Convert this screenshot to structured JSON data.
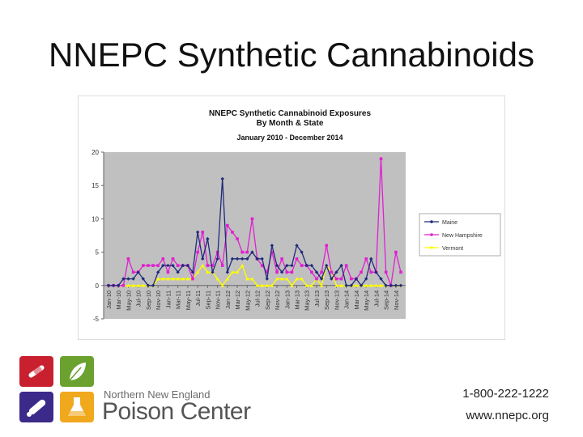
{
  "slide": {
    "title": "NNEPC Synthetic Cannabinoids",
    "phone": "1-800-222-1222",
    "website": "www.nnepc.org",
    "logo": {
      "line1": "Northern New England",
      "line2": "Poison Center",
      "icons": [
        "syringe-icon",
        "leaf-icon",
        "pill-icon",
        "flask-icon"
      ],
      "tile_colors": [
        "#c8202f",
        "#6aa12f",
        "#3b2a8a",
        "#f0a81c"
      ]
    }
  },
  "chart_data": {
    "type": "line",
    "title": "NNEPC Synthetic Cannabinoid Exposures",
    "subtitle": "By Month & State",
    "date_range": "January 2010 - December 2014",
    "ylim": [
      -5,
      20
    ],
    "yticks": [
      -5,
      0,
      5,
      10,
      15,
      20
    ],
    "grid": false,
    "legend_position": "right",
    "plot_background": "#c0c0c0",
    "x": [
      "Jan-10",
      "Feb-10",
      "Mar-10",
      "Apr-10",
      "May-10",
      "Jun-10",
      "Jul-10",
      "Aug-10",
      "Sep-10",
      "Oct-10",
      "Nov-10",
      "Dec-10",
      "Jan-11",
      "Feb-11",
      "Mar-11",
      "Apr-11",
      "May-11",
      "Jun-11",
      "Jul-11",
      "Aug-11",
      "Sep-11",
      "Oct-11",
      "Nov-11",
      "Dec-11",
      "Jan-12",
      "Feb-12",
      "Mar-12",
      "Apr-12",
      "May-12",
      "Jun-12",
      "Jul-12",
      "Aug-12",
      "Sep-12",
      "Oct-12",
      "Nov-12",
      "Dec-12",
      "Jan-13",
      "Feb-13",
      "Mar-13",
      "Apr-13",
      "May-13",
      "Jun-13",
      "Jul-13",
      "Aug-13",
      "Sep-13",
      "Oct-13",
      "Nov-13",
      "Dec-13",
      "Jan-14",
      "Feb-14",
      "Mar-14",
      "Apr-14",
      "May-14",
      "Jun-14",
      "Jul-14",
      "Aug-14",
      "Sep-14",
      "Oct-14",
      "Nov-14",
      "Dec-14"
    ],
    "xtick_labels": [
      "Jan-10",
      "Mar-10",
      "May-10",
      "Jul-10",
      "Sep-10",
      "Nov-10",
      "Jan-11",
      "Mar-11",
      "May-11",
      "Jul-11",
      "Sep-11",
      "Nov-11",
      "Jan-12",
      "Mar-12",
      "May-12",
      "Jul-12",
      "Sep-12",
      "Nov-12",
      "Jan-13",
      "Mar-13",
      "May-13",
      "Jul-13",
      "Sep-13",
      "Nov-13",
      "Jan-14",
      "Mar-14",
      "May-14",
      "Jul-14",
      "Sep-14",
      "Nov-14"
    ],
    "series": [
      {
        "name": "Maine",
        "color": "#1f2a7a",
        "marker": "diamond",
        "values": [
          0,
          0,
          0,
          1,
          1,
          1,
          2,
          1,
          0,
          0,
          2,
          3,
          3,
          3,
          2,
          3,
          3,
          2,
          8,
          4,
          7,
          2,
          4,
          16,
          2,
          4,
          4,
          4,
          4,
          5,
          4,
          4,
          1,
          6,
          3,
          2,
          3,
          3,
          6,
          5,
          3,
          3,
          2,
          1,
          3,
          1,
          2,
          3,
          0,
          0,
          1,
          0,
          1,
          4,
          2,
          1,
          0,
          0,
          0,
          0
        ]
      },
      {
        "name": "New Hampshire",
        "color": "#e020d0",
        "marker": "square",
        "values": [
          0,
          0,
          0,
          0,
          4,
          2,
          2,
          3,
          3,
          3,
          3,
          4,
          2,
          4,
          3,
          3,
          3,
          1,
          5,
          8,
          3,
          3,
          5,
          3,
          9,
          8,
          7,
          5,
          5,
          10,
          4,
          3,
          2,
          5,
          2,
          4,
          2,
          2,
          4,
          3,
          3,
          2,
          1,
          2,
          6,
          2,
          1,
          1,
          3,
          1,
          1,
          2,
          4,
          2,
          2,
          19,
          2,
          0,
          5,
          2
        ]
      },
      {
        "name": "Vermont",
        "color": "#ffff00",
        "marker": "triangle",
        "values": [
          0,
          0,
          0,
          0,
          0,
          0,
          0,
          0,
          0,
          0,
          1,
          1,
          1,
          1,
          1,
          1,
          1,
          1,
          2,
          3,
          2,
          2,
          1,
          0,
          1,
          2,
          2,
          3,
          1,
          1,
          0,
          0,
          0,
          0,
          1,
          1,
          1,
          0,
          1,
          1,
          0,
          0,
          1,
          0,
          3,
          2,
          0,
          0,
          0,
          0,
          0,
          0,
          0,
          0,
          0,
          0,
          0,
          0,
          0,
          0
        ]
      }
    ]
  }
}
